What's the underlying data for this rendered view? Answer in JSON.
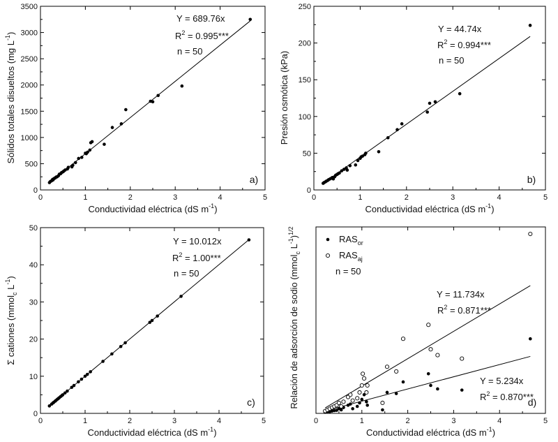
{
  "chart_data": [
    {
      "panel": "a)",
      "type": "scatter",
      "xlabel": "Conductividad eléctrica (dS m",
      "xlabel_sup": "-1",
      "xlabel_end": ")",
      "ylabel": "Sólidos totales disueltos (mg L",
      "ylabel_sup": "-1",
      "ylabel_end": ")",
      "xlim": [
        0,
        5
      ],
      "ylim": [
        0,
        3500
      ],
      "xticks": [
        0,
        1,
        2,
        3,
        4,
        5
      ],
      "yticks": [
        0,
        500,
        1000,
        1500,
        2000,
        2500,
        3000,
        3500
      ],
      "annotations": {
        "equation": "Y = 689.76x",
        "r2_prefix": "R",
        "r2_sup": "2",
        "r2_value": " = 0.995***",
        "n": "n = 50"
      },
      "fit": {
        "slope": 689.76,
        "x_range": [
          0.2,
          4.67
        ]
      },
      "points": [
        [
          0.2,
          140
        ],
        [
          0.22,
          160
        ],
        [
          0.25,
          175
        ],
        [
          0.27,
          200
        ],
        [
          0.28,
          190
        ],
        [
          0.3,
          215
        ],
        [
          0.32,
          225
        ],
        [
          0.33,
          230
        ],
        [
          0.35,
          245
        ],
        [
          0.37,
          250
        ],
        [
          0.4,
          270
        ],
        [
          0.42,
          300
        ],
        [
          0.45,
          310
        ],
        [
          0.47,
          330
        ],
        [
          0.5,
          345
        ],
        [
          0.52,
          360
        ],
        [
          0.55,
          380
        ],
        [
          0.6,
          400
        ],
        [
          0.62,
          430
        ],
        [
          0.7,
          440
        ],
        [
          0.72,
          470
        ],
        [
          0.78,
          520
        ],
        [
          0.85,
          600
        ],
        [
          0.92,
          620
        ],
        [
          1.0,
          700
        ],
        [
          1.02,
          690
        ],
        [
          1.05,
          720
        ],
        [
          1.1,
          760
        ],
        [
          1.12,
          900
        ],
        [
          1.15,
          920
        ],
        [
          1.42,
          870
        ],
        [
          1.6,
          1190
        ],
        [
          1.8,
          1260
        ],
        [
          1.9,
          1530
        ],
        [
          2.45,
          1690
        ],
        [
          2.5,
          1680
        ],
        [
          2.62,
          1800
        ],
        [
          3.15,
          1980
        ],
        [
          4.67,
          3250
        ]
      ]
    },
    {
      "panel": "b)",
      "type": "scatter",
      "xlabel": "Conductividad eléctrica (dS m",
      "xlabel_sup": "-1",
      "xlabel_end": ")",
      "ylabel": "Presión osmótica (kPa)",
      "xlim": [
        0,
        5
      ],
      "ylim": [
        0,
        250
      ],
      "xticks": [
        0,
        1,
        2,
        3,
        4,
        5
      ],
      "yticks": [
        0,
        50,
        100,
        150,
        200,
        250
      ],
      "annotations": {
        "equation": "Y = 44.74x",
        "r2_prefix": "R",
        "r2_sup": "2",
        "r2_value": " = 0.994***",
        "n": "n = 50"
      },
      "fit": {
        "slope": 44.74,
        "x_range": [
          0.2,
          4.67
        ]
      },
      "points": [
        [
          0.2,
          9
        ],
        [
          0.22,
          10
        ],
        [
          0.25,
          11
        ],
        [
          0.27,
          12
        ],
        [
          0.3,
          13
        ],
        [
          0.32,
          14
        ],
        [
          0.35,
          15
        ],
        [
          0.38,
          16
        ],
        [
          0.4,
          17
        ],
        [
          0.42,
          15
        ],
        [
          0.45,
          18
        ],
        [
          0.47,
          20
        ],
        [
          0.5,
          21
        ],
        [
          0.52,
          22
        ],
        [
          0.55,
          23
        ],
        [
          0.6,
          26
        ],
        [
          0.65,
          28
        ],
        [
          0.7,
          30
        ],
        [
          0.72,
          27
        ],
        [
          0.78,
          33
        ],
        [
          0.9,
          34
        ],
        [
          0.95,
          40
        ],
        [
          1.0,
          43
        ],
        [
          1.02,
          45
        ],
        [
          1.05,
          46
        ],
        [
          1.1,
          48
        ],
        [
          1.12,
          50
        ],
        [
          1.4,
          52
        ],
        [
          1.6,
          71
        ],
        [
          1.8,
          82
        ],
        [
          1.9,
          90
        ],
        [
          2.45,
          106
        ],
        [
          2.5,
          118
        ],
        [
          2.62,
          120
        ],
        [
          3.15,
          131
        ],
        [
          4.67,
          224
        ]
      ]
    },
    {
      "panel": "c)",
      "type": "scatter",
      "xlabel": "Conductividad eléctrica (dS m",
      "xlabel_sup": "-1",
      "xlabel_end": ")",
      "ylabel": "Σ cationes (mmol",
      "ylabel_sub": "c",
      "ylabel_mid": " L",
      "ylabel_sup": "-1",
      "ylabel_end": ")",
      "xlim": [
        0,
        5
      ],
      "ylim": [
        0,
        50
      ],
      "xticks": [
        0,
        1,
        2,
        3,
        4,
        5
      ],
      "yticks": [
        0,
        10,
        20,
        30,
        40,
        50
      ],
      "annotations": {
        "equation": "Y = 10.012x",
        "r2_prefix": "R",
        "r2_sup": "2",
        "r2_value": " = 1.00***",
        "n": "n = 50"
      },
      "fit": {
        "slope": 10.012,
        "x_range": [
          0.2,
          4.67
        ]
      },
      "points": [
        [
          0.2,
          2.0
        ],
        [
          0.25,
          2.5
        ],
        [
          0.28,
          2.8
        ],
        [
          0.3,
          3.0
        ],
        [
          0.33,
          3.3
        ],
        [
          0.35,
          3.5
        ],
        [
          0.38,
          3.8
        ],
        [
          0.4,
          4.0
        ],
        [
          0.42,
          4.2
        ],
        [
          0.45,
          4.5
        ],
        [
          0.48,
          4.8
        ],
        [
          0.5,
          5.0
        ],
        [
          0.55,
          5.5
        ],
        [
          0.6,
          6.0
        ],
        [
          0.7,
          7.0
        ],
        [
          0.75,
          7.5
        ],
        [
          0.85,
          8.5
        ],
        [
          0.92,
          9.2
        ],
        [
          1.0,
          10.0
        ],
        [
          1.05,
          10.5
        ],
        [
          1.12,
          11.2
        ],
        [
          1.4,
          14.0
        ],
        [
          1.6,
          16.0
        ],
        [
          1.8,
          18.0
        ],
        [
          1.9,
          19.0
        ],
        [
          2.45,
          24.5
        ],
        [
          2.5,
          25.0
        ],
        [
          2.62,
          26.2
        ],
        [
          3.15,
          31.5
        ],
        [
          4.67,
          46.7
        ]
      ]
    },
    {
      "panel": "d)",
      "type": "scatter",
      "xlabel": "Conductividad eléctrica (dS m",
      "xlabel_sup": "-1",
      "xlabel_end": ")",
      "ylabel": "Relación de adsorción de sodio (mmol",
      "ylabel_sub": "c",
      "ylabel_mid": " L",
      "ylabel_sup": "-1",
      "ylabel_end": ")",
      "ylabel_sup2": "1/2",
      "xlim": [
        0,
        5
      ],
      "ylim": [
        0,
        80
      ],
      "xticks": [
        0,
        1,
        2,
        3,
        4,
        5
      ],
      "yticks": [],
      "legend": {
        "items": [
          {
            "main": "RAS",
            "sub": "or",
            "marker": "filled"
          },
          {
            "main": "RAS",
            "sub": "aj",
            "marker": "open"
          }
        ],
        "n": "n = 50"
      },
      "annotations": [
        {
          "equation": "Y = 11.734x",
          "r2_prefix": "R",
          "r2_sup": "2",
          "r2_value": " = 0.871***"
        },
        {
          "equation": "Y = 5.234x",
          "r2_prefix": "R",
          "r2_sup": "2",
          "r2_value": " = 0.870***"
        }
      ],
      "series": [
        {
          "name": "RAS_or",
          "marker": "filled",
          "fit": {
            "slope": 5.234,
            "x_range": [
              0.2,
              4.67
            ]
          },
          "points": [
            [
              0.2,
              0.5
            ],
            [
              0.25,
              0.8
            ],
            [
              0.3,
              0.7
            ],
            [
              0.35,
              1.0
            ],
            [
              0.4,
              1.2
            ],
            [
              0.45,
              1.3
            ],
            [
              0.5,
              2.0
            ],
            [
              0.55,
              1.5
            ],
            [
              0.6,
              2.5
            ],
            [
              0.7,
              3.5
            ],
            [
              0.75,
              4.0
            ],
            [
              0.8,
              2.0
            ],
            [
              0.9,
              3.0
            ],
            [
              0.95,
              4.5
            ],
            [
              1.0,
              6.0
            ],
            [
              1.05,
              8.0
            ],
            [
              1.1,
              5.0
            ],
            [
              1.12,
              3.5
            ],
            [
              1.45,
              1.5
            ],
            [
              1.55,
              9.0
            ],
            [
              1.75,
              8.5
            ],
            [
              1.9,
              13.5
            ],
            [
              2.45,
              17.0
            ],
            [
              2.5,
              12.0
            ],
            [
              2.65,
              10.5
            ],
            [
              3.18,
              10.0
            ],
            [
              4.67,
              32.0
            ]
          ]
        },
        {
          "name": "RAS_aj",
          "marker": "open",
          "fit": {
            "slope": 11.734,
            "x_range": [
              0.2,
              4.67
            ]
          },
          "points": [
            [
              0.2,
              1.0
            ],
            [
              0.25,
              1.5
            ],
            [
              0.3,
              2.0
            ],
            [
              0.35,
              2.5
            ],
            [
              0.4,
              3.0
            ],
            [
              0.45,
              3.5
            ],
            [
              0.5,
              4.5
            ],
            [
              0.55,
              3.0
            ],
            [
              0.6,
              5.0
            ],
            [
              0.7,
              7.0
            ],
            [
              0.75,
              8.0
            ],
            [
              0.8,
              5.5
            ],
            [
              0.9,
              6.5
            ],
            [
              0.95,
              9.0
            ],
            [
              1.0,
              12.0
            ],
            [
              1.02,
              17.0
            ],
            [
              1.05,
              15.0
            ],
            [
              1.1,
              9.0
            ],
            [
              1.12,
              12.0
            ],
            [
              1.45,
              4.5
            ],
            [
              1.55,
              20.0
            ],
            [
              1.75,
              18.0
            ],
            [
              1.9,
              32.0
            ],
            [
              2.45,
              38.0
            ],
            [
              2.5,
              27.5
            ],
            [
              2.65,
              25.0
            ],
            [
              3.18,
              23.5
            ],
            [
              4.67,
              77.0
            ]
          ]
        }
      ]
    }
  ]
}
